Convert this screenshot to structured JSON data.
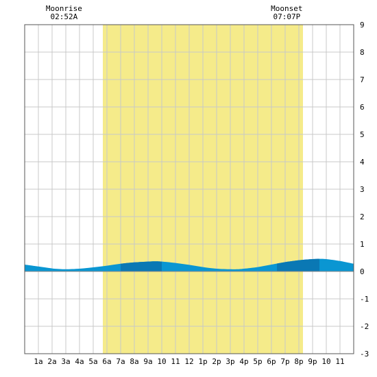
{
  "chart_data": {
    "type": "area",
    "title": "",
    "xlabel": "",
    "ylabel": "",
    "x_range_hours": [
      0,
      24
    ],
    "ylim": [
      -3,
      9
    ],
    "y_ticks": [
      -3,
      -2,
      -1,
      0,
      1,
      2,
      3,
      4,
      5,
      6,
      7,
      8,
      9
    ],
    "x_ticks": [
      {
        "hour": 1,
        "label": "1a"
      },
      {
        "hour": 2,
        "label": "2a"
      },
      {
        "hour": 3,
        "label": "3a"
      },
      {
        "hour": 4,
        "label": "4a"
      },
      {
        "hour": 5,
        "label": "5a"
      },
      {
        "hour": 6,
        "label": "6a"
      },
      {
        "hour": 7,
        "label": "7a"
      },
      {
        "hour": 8,
        "label": "8a"
      },
      {
        "hour": 9,
        "label": "9a"
      },
      {
        "hour": 10,
        "label": "10"
      },
      {
        "hour": 11,
        "label": "11"
      },
      {
        "hour": 12,
        "label": "12"
      },
      {
        "hour": 13,
        "label": "1p"
      },
      {
        "hour": 14,
        "label": "2p"
      },
      {
        "hour": 15,
        "label": "3p"
      },
      {
        "hour": 16,
        "label": "4p"
      },
      {
        "hour": 17,
        "label": "5p"
      },
      {
        "hour": 18,
        "label": "6p"
      },
      {
        "hour": 19,
        "label": "7p"
      },
      {
        "hour": 20,
        "label": "8p"
      },
      {
        "hour": 21,
        "label": "9p"
      },
      {
        "hour": 22,
        "label": "10"
      },
      {
        "hour": 23,
        "label": "11"
      }
    ],
    "daylight": {
      "start_hour": 5.7,
      "end_hour": 20.3
    },
    "moon_events": [
      {
        "label": "Moonrise",
        "time": "02:52A",
        "hour": 2.867
      },
      {
        "label": "Moonset",
        "time": "07:07P",
        "hour": 19.117
      }
    ],
    "tide_series": {
      "x": [
        0,
        1,
        2,
        2.5,
        3,
        4,
        5,
        6,
        7,
        8,
        9,
        9.5,
        10,
        11,
        12,
        13,
        14,
        15,
        15.5,
        16,
        17,
        18,
        19,
        20,
        21,
        21.5,
        22,
        23,
        24
      ],
      "y": [
        0.25,
        0.18,
        0.11,
        0.09,
        0.08,
        0.1,
        0.15,
        0.21,
        0.28,
        0.33,
        0.36,
        0.37,
        0.36,
        0.31,
        0.24,
        0.16,
        0.1,
        0.08,
        0.08,
        0.1,
        0.16,
        0.25,
        0.34,
        0.41,
        0.45,
        0.46,
        0.45,
        0.38,
        0.28
      ]
    },
    "grid": true,
    "colors": {
      "daylight": "#f5eb8a",
      "tide_fill": "#0a96d2",
      "tide_dark": "#0a78b4",
      "grid": "#c8c8c8",
      "zero_line": "#888888",
      "border": "#555555"
    }
  }
}
